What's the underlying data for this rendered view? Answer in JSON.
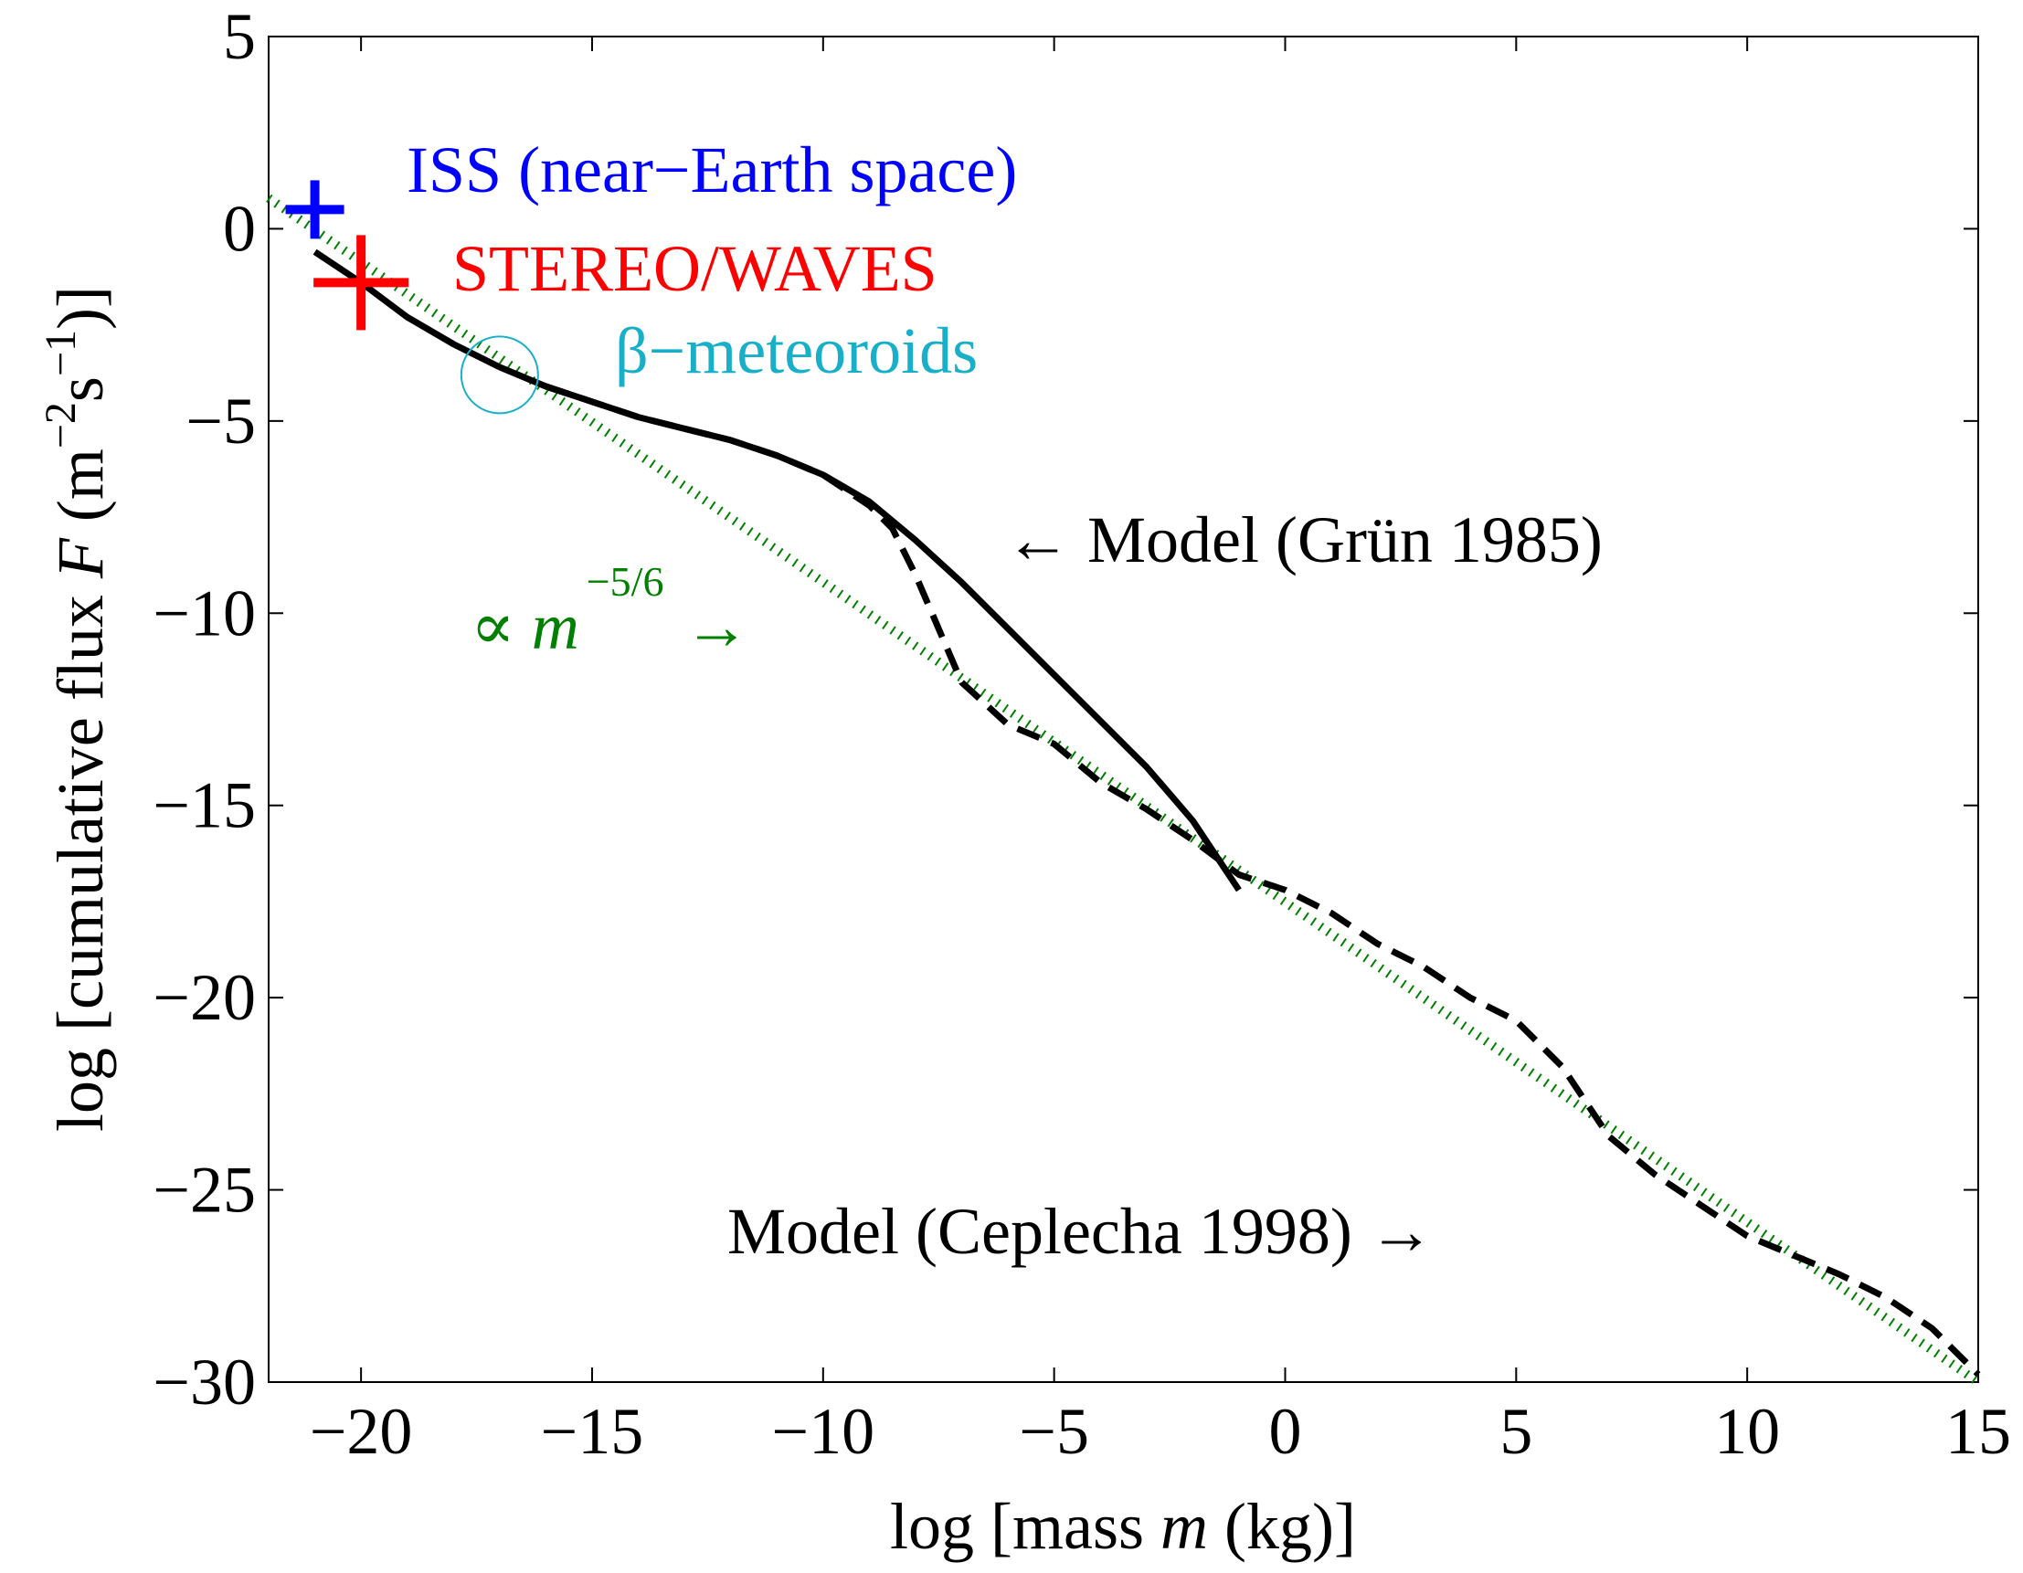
{
  "chart_data": {
    "type": "line",
    "xlabel": {
      "pre": "log [mass ",
      "var": "m",
      "post": " (kg)]"
    },
    "ylabel": {
      "pre": "log [cumulative flux ",
      "var": "F",
      "mid": " (m",
      "sup1": "−2",
      "mid2": "s",
      "sup2": "−1",
      "post": ")]"
    },
    "xlim": [
      -22,
      15
    ],
    "ylim": [
      -30,
      5
    ],
    "xticks": [
      -20,
      -15,
      -10,
      -5,
      0,
      5,
      10,
      15
    ],
    "yticks": [
      5,
      0,
      -5,
      -10,
      -15,
      -20,
      -25,
      -30
    ],
    "xtick_labels": [
      "−20",
      "−15",
      "−10",
      "−5",
      "0",
      "5",
      "10",
      "15"
    ],
    "ytick_labels": [
      "5",
      "0",
      "−5",
      "−10",
      "−15",
      "−20",
      "−25",
      "−30"
    ],
    "grid": false,
    "colors": {
      "iss": "#0000ff",
      "stereo": "#ff0000",
      "beta": "#1aafc8",
      "powerlaw": "#008000",
      "model": "#000000"
    },
    "series": [
      {
        "name": "Model (Grün 1985)",
        "style": "solid",
        "x": [
          -21,
          -20,
          -19,
          -18,
          -17,
          -16,
          -15,
          -14,
          -13,
          -12,
          -11,
          -10,
          -9,
          -8,
          -7,
          -6,
          -5,
          -4,
          -3,
          -2,
          -1
        ],
        "y": [
          -0.6,
          -1.4,
          -2.3,
          -3.0,
          -3.6,
          -4.1,
          -4.5,
          -4.9,
          -5.2,
          -5.5,
          -5.9,
          -6.4,
          -7.1,
          -8.1,
          -9.2,
          -10.4,
          -11.6,
          -12.8,
          -14.0,
          -15.4,
          -17.2
        ]
      },
      {
        "name": "Model (Ceplecha 1998)",
        "style": "dashed",
        "x": [
          -16,
          -15,
          -14,
          -13,
          -12,
          -11,
          -10,
          -9,
          -8.5,
          -8,
          -7,
          -6,
          -5,
          -4,
          -3,
          -2,
          -1,
          0,
          1,
          2,
          3,
          4,
          5,
          6,
          7,
          8,
          9,
          10,
          11,
          12,
          13,
          14,
          15
        ],
        "y": [
          -4.1,
          -4.5,
          -4.9,
          -5.2,
          -5.5,
          -5.9,
          -6.4,
          -7.2,
          -7.8,
          -9.0,
          -11.8,
          -12.9,
          -13.4,
          -14.4,
          -15.1,
          -15.9,
          -16.8,
          -17.2,
          -17.8,
          -18.6,
          -19.2,
          -20.0,
          -20.6,
          -21.8,
          -23.6,
          -24.6,
          -25.4,
          -26.2,
          -26.7,
          -27.2,
          -27.8,
          -28.6,
          -29.8
        ]
      },
      {
        "name": "∝ m^−5/6",
        "style": "dotted",
        "x": [
          -22,
          15
        ],
        "y": [
          0.8,
          -30.0
        ]
      }
    ],
    "points": [
      {
        "name": "ISS (near−Earth space)",
        "x": -21,
        "y": 0.5,
        "size": "small"
      },
      {
        "name": "STEREO/WAVES",
        "x": -20,
        "y": -1.4,
        "size": "large"
      },
      {
        "name": "β−meteoroids",
        "x": -17,
        "y": -3.8,
        "marker": "circle"
      }
    ],
    "annotations": {
      "iss": "ISS (near−Earth space)",
      "stereo": "STEREO/WAVES",
      "beta": "β−meteoroids",
      "grun": "← Model (Grün 1985)",
      "ceplecha": "Model (Ceplecha 1998) →",
      "powerlaw_prefix": "∝ ",
      "powerlaw_var": "m",
      "powerlaw_exp": "−5/6",
      "powerlaw_arrow": "→"
    }
  }
}
